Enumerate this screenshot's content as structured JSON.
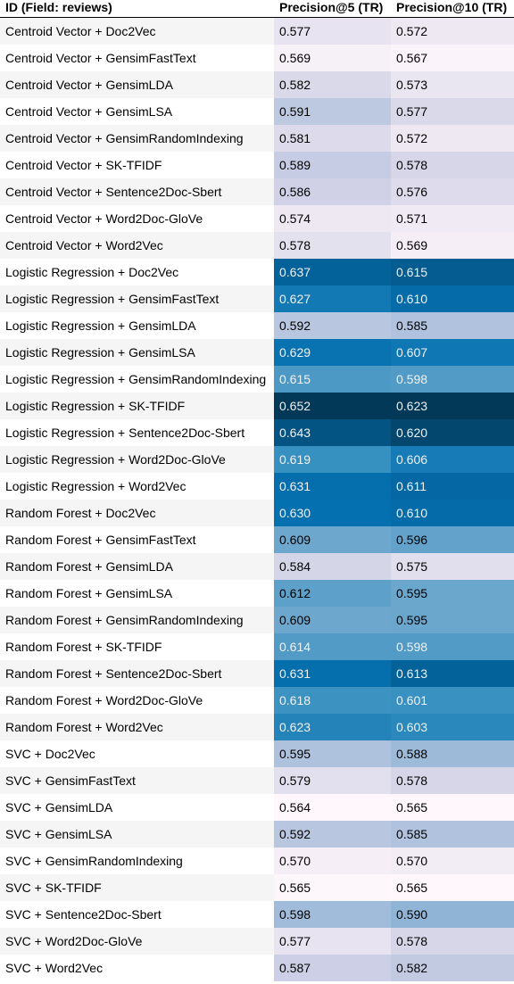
{
  "table": {
    "headers": [
      "ID (Field: reviews)",
      "Precision@5 (TR)",
      "Precision@10 (TR)"
    ],
    "color_scale": {
      "low": "#fff7fb",
      "high": "#023858"
    },
    "rows": [
      {
        "id": "Centroid Vector + Doc2Vec",
        "p5": "0.577",
        "p10": "0.572"
      },
      {
        "id": "Centroid Vector + GensimFastText",
        "p5": "0.569",
        "p10": "0.567"
      },
      {
        "id": "Centroid Vector + GensimLDA",
        "p5": "0.582",
        "p10": "0.573"
      },
      {
        "id": "Centroid Vector + GensimLSA",
        "p5": "0.591",
        "p10": "0.577"
      },
      {
        "id": "Centroid Vector + GensimRandomIndexing",
        "p5": "0.581",
        "p10": "0.572"
      },
      {
        "id": "Centroid Vector + SK-TFIDF",
        "p5": "0.589",
        "p10": "0.578"
      },
      {
        "id": "Centroid Vector + Sentence2Doc-Sbert",
        "p5": "0.586",
        "p10": "0.576"
      },
      {
        "id": "Centroid Vector + Word2Doc-GloVe",
        "p5": "0.574",
        "p10": "0.571"
      },
      {
        "id": "Centroid Vector + Word2Vec",
        "p5": "0.578",
        "p10": "0.569"
      },
      {
        "id": "Logistic Regression + Doc2Vec",
        "p5": "0.637",
        "p10": "0.615"
      },
      {
        "id": "Logistic Regression + GensimFastText",
        "p5": "0.627",
        "p10": "0.610"
      },
      {
        "id": "Logistic Regression + GensimLDA",
        "p5": "0.592",
        "p10": "0.585"
      },
      {
        "id": "Logistic Regression + GensimLSA",
        "p5": "0.629",
        "p10": "0.607"
      },
      {
        "id": "Logistic Regression + GensimRandomIndexing",
        "p5": "0.615",
        "p10": "0.598"
      },
      {
        "id": "Logistic Regression + SK-TFIDF",
        "p5": "0.652",
        "p10": "0.623"
      },
      {
        "id": "Logistic Regression + Sentence2Doc-Sbert",
        "p5": "0.643",
        "p10": "0.620"
      },
      {
        "id": "Logistic Regression + Word2Doc-GloVe",
        "p5": "0.619",
        "p10": "0.606"
      },
      {
        "id": "Logistic Regression + Word2Vec",
        "p5": "0.631",
        "p10": "0.611"
      },
      {
        "id": "Random Forest + Doc2Vec",
        "p5": "0.630",
        "p10": "0.610"
      },
      {
        "id": "Random Forest + GensimFastText",
        "p5": "0.609",
        "p10": "0.596"
      },
      {
        "id": "Random Forest + GensimLDA",
        "p5": "0.584",
        "p10": "0.575"
      },
      {
        "id": "Random Forest + GensimLSA",
        "p5": "0.612",
        "p10": "0.595"
      },
      {
        "id": "Random Forest + GensimRandomIndexing",
        "p5": "0.609",
        "p10": "0.595"
      },
      {
        "id": "Random Forest + SK-TFIDF",
        "p5": "0.614",
        "p10": "0.598"
      },
      {
        "id": "Random Forest + Sentence2Doc-Sbert",
        "p5": "0.631",
        "p10": "0.613"
      },
      {
        "id": "Random Forest + Word2Doc-GloVe",
        "p5": "0.618",
        "p10": "0.601"
      },
      {
        "id": "Random Forest + Word2Vec",
        "p5": "0.623",
        "p10": "0.603"
      },
      {
        "id": "SVC + Doc2Vec",
        "p5": "0.595",
        "p10": "0.588"
      },
      {
        "id": "SVC + GensimFastText",
        "p5": "0.579",
        "p10": "0.578"
      },
      {
        "id": "SVC + GensimLDA",
        "p5": "0.564",
        "p10": "0.565"
      },
      {
        "id": "SVC + GensimLSA",
        "p5": "0.592",
        "p10": "0.585"
      },
      {
        "id": "SVC + GensimRandomIndexing",
        "p5": "0.570",
        "p10": "0.570"
      },
      {
        "id": "SVC + SK-TFIDF",
        "p5": "0.565",
        "p10": "0.565"
      },
      {
        "id": "SVC + Sentence2Doc-Sbert",
        "p5": "0.598",
        "p10": "0.590"
      },
      {
        "id": "SVC + Word2Doc-GloVe",
        "p5": "0.577",
        "p10": "0.578"
      },
      {
        "id": "SVC + Word2Vec",
        "p5": "0.587",
        "p10": "0.582"
      }
    ]
  }
}
